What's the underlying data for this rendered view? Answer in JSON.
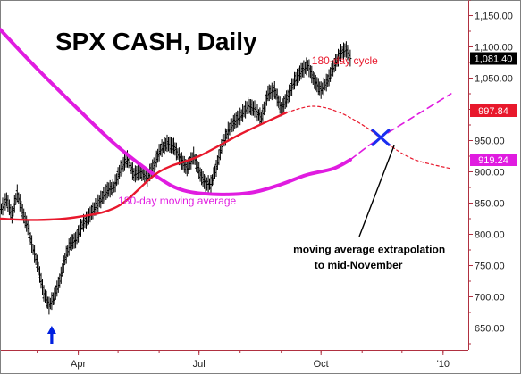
{
  "chart_data": {
    "type": "line",
    "title": "SPX CASH, Daily",
    "xlim": [
      "2009-02-01",
      "2010-01-20"
    ],
    "ylim": [
      615,
      1175
    ],
    "x_ticks": [
      {
        "label": "Apr",
        "date": "2009-04-01"
      },
      {
        "label": "Jul",
        "date": "2009-07-01"
      },
      {
        "label": "Oct",
        "date": "2009-10-01"
      },
      {
        "label": "'10",
        "date": "2010-01-01"
      }
    ],
    "y_ticks": [
      650,
      700,
      750,
      800,
      850,
      900,
      950,
      1000,
      1050,
      1100,
      1150
    ],
    "y_tick_labels": [
      "650.00",
      "700.00",
      "750.00",
      "800.00",
      "850.00",
      "900.00",
      "950.00",
      "1,000.00",
      "1,050.00",
      "1,100.00",
      "1,150.00"
    ],
    "grid": false,
    "last_price": {
      "value": 1081.4,
      "label": "1,081.40",
      "color": "#000000"
    },
    "price_tags": [
      {
        "value": 997.84,
        "label": "997.84",
        "color": "#e8182c"
      },
      {
        "value": 919.24,
        "label": "919.24",
        "color": "#e01ce0"
      }
    ],
    "series": [
      {
        "kind": "ohlc",
        "color": "#000000",
        "points": [
          {
            "x": "2009-02-02",
            "y": 840
          },
          {
            "x": "2009-02-06",
            "y": 855
          },
          {
            "x": "2009-02-10",
            "y": 830
          },
          {
            "x": "2009-02-14",
            "y": 865
          },
          {
            "x": "2009-02-18",
            "y": 835
          },
          {
            "x": "2009-02-22",
            "y": 810
          },
          {
            "x": "2009-02-26",
            "y": 775
          },
          {
            "x": "2009-03-02",
            "y": 745
          },
          {
            "x": "2009-03-06",
            "y": 705
          },
          {
            "x": "2009-03-10",
            "y": 685
          },
          {
            "x": "2009-03-14",
            "y": 700
          },
          {
            "x": "2009-03-18",
            "y": 725
          },
          {
            "x": "2009-03-22",
            "y": 760
          },
          {
            "x": "2009-03-26",
            "y": 785
          },
          {
            "x": "2009-03-30",
            "y": 790
          },
          {
            "x": "2009-04-04",
            "y": 815
          },
          {
            "x": "2009-04-08",
            "y": 825
          },
          {
            "x": "2009-04-13",
            "y": 840
          },
          {
            "x": "2009-04-18",
            "y": 855
          },
          {
            "x": "2009-04-23",
            "y": 870
          },
          {
            "x": "2009-04-28",
            "y": 875
          },
          {
            "x": "2009-05-03",
            "y": 905
          },
          {
            "x": "2009-05-08",
            "y": 920
          },
          {
            "x": "2009-05-13",
            "y": 895
          },
          {
            "x": "2009-05-18",
            "y": 900
          },
          {
            "x": "2009-05-23",
            "y": 890
          },
          {
            "x": "2009-05-28",
            "y": 910
          },
          {
            "x": "2009-06-02",
            "y": 935
          },
          {
            "x": "2009-06-07",
            "y": 945
          },
          {
            "x": "2009-06-12",
            "y": 940
          },
          {
            "x": "2009-06-17",
            "y": 920
          },
          {
            "x": "2009-06-22",
            "y": 905
          },
          {
            "x": "2009-06-27",
            "y": 925
          },
          {
            "x": "2009-07-02",
            "y": 895
          },
          {
            "x": "2009-07-06",
            "y": 880
          },
          {
            "x": "2009-07-10",
            "y": 880
          },
          {
            "x": "2009-07-14",
            "y": 905
          },
          {
            "x": "2009-07-18",
            "y": 940
          },
          {
            "x": "2009-07-23",
            "y": 965
          },
          {
            "x": "2009-07-28",
            "y": 980
          },
          {
            "x": "2009-08-02",
            "y": 990
          },
          {
            "x": "2009-08-07",
            "y": 1005
          },
          {
            "x": "2009-08-12",
            "y": 1000
          },
          {
            "x": "2009-08-17",
            "y": 985
          },
          {
            "x": "2009-08-22",
            "y": 1025
          },
          {
            "x": "2009-08-27",
            "y": 1030
          },
          {
            "x": "2009-09-01",
            "y": 1000
          },
          {
            "x": "2009-09-06",
            "y": 1020
          },
          {
            "x": "2009-09-11",
            "y": 1045
          },
          {
            "x": "2009-09-16",
            "y": 1060
          },
          {
            "x": "2009-09-21",
            "y": 1070
          },
          {
            "x": "2009-09-26",
            "y": 1045
          },
          {
            "x": "2009-10-01",
            "y": 1030
          },
          {
            "x": "2009-10-06",
            "y": 1045
          },
          {
            "x": "2009-10-11",
            "y": 1070
          },
          {
            "x": "2009-10-16",
            "y": 1090
          },
          {
            "x": "2009-10-20",
            "y": 1095
          },
          {
            "x": "2009-10-23",
            "y": 1081.4
          }
        ]
      },
      {
        "name": "180-day moving average",
        "kind": "line",
        "color": "#e01ce0",
        "points": [
          {
            "x": "2009-02-01",
            "y": 1128
          },
          {
            "x": "2009-03-01",
            "y": 1065
          },
          {
            "x": "2009-04-01",
            "y": 1000
          },
          {
            "x": "2009-05-01",
            "y": 940
          },
          {
            "x": "2009-06-01",
            "y": 890
          },
          {
            "x": "2009-06-20",
            "y": 870
          },
          {
            "x": "2009-07-15",
            "y": 864
          },
          {
            "x": "2009-08-10",
            "y": 867
          },
          {
            "x": "2009-09-01",
            "y": 880
          },
          {
            "x": "2009-09-20",
            "y": 895
          },
          {
            "x": "2009-10-10",
            "y": 905
          },
          {
            "x": "2009-10-23",
            "y": 919.24
          }
        ]
      },
      {
        "name": "moving average extrapolation to mid-November",
        "kind": "dashed",
        "color": "#e01ce0",
        "points": [
          {
            "x": "2009-10-23",
            "y": 919.24
          },
          {
            "x": "2009-11-15",
            "y": 955
          },
          {
            "x": "2010-01-07",
            "y": 1025
          }
        ]
      },
      {
        "kind": "line",
        "color": "#e8182c",
        "points": [
          {
            "x": "2009-02-01",
            "y": 825
          },
          {
            "x": "2009-03-01",
            "y": 823
          },
          {
            "x": "2009-04-01",
            "y": 828
          },
          {
            "x": "2009-05-01",
            "y": 845
          },
          {
            "x": "2009-06-01",
            "y": 900
          },
          {
            "x": "2009-07-01",
            "y": 925
          },
          {
            "x": "2009-08-01",
            "y": 960
          },
          {
            "x": "2009-09-05",
            "y": 995
          }
        ]
      },
      {
        "name": "180-day cycle",
        "kind": "dotted",
        "color": "#e8182c",
        "points": [
          {
            "x": "2009-09-05",
            "y": 995
          },
          {
            "x": "2009-09-25",
            "y": 1005
          },
          {
            "x": "2009-10-15",
            "y": 995
          },
          {
            "x": "2009-11-05",
            "y": 970
          },
          {
            "x": "2009-11-20",
            "y": 945
          },
          {
            "x": "2009-12-10",
            "y": 920
          },
          {
            "x": "2010-01-07",
            "y": 905
          }
        ]
      }
    ],
    "annotations": [
      {
        "name": "low-marker",
        "kind": "arrow-up",
        "x": "2009-03-12",
        "y": 625,
        "color": "#0020e0"
      },
      {
        "name": "cross-marker",
        "kind": "cross",
        "x": "2009-11-15",
        "y": 955,
        "color": "#1a2ef0"
      },
      {
        "name": "cycle-label",
        "kind": "text",
        "text": "180-day cycle",
        "x": "2009-09-24",
        "y": 1072,
        "color": "#e8182c"
      },
      {
        "name": "ma-label",
        "kind": "text",
        "text": "180-day moving average",
        "x": "2009-05-01",
        "y": 848,
        "color": "#e01ce0"
      },
      {
        "name": "extrapolation-label-line1",
        "kind": "text",
        "text": "moving average extrapolation",
        "x": "2009-09-10",
        "y": 770,
        "color": "#000000",
        "weight": "bold"
      },
      {
        "name": "extrapolation-label-line2",
        "kind": "text",
        "text": "to mid-November",
        "x": "2009-09-26",
        "y": 745,
        "color": "#000000",
        "weight": "bold"
      }
    ]
  }
}
